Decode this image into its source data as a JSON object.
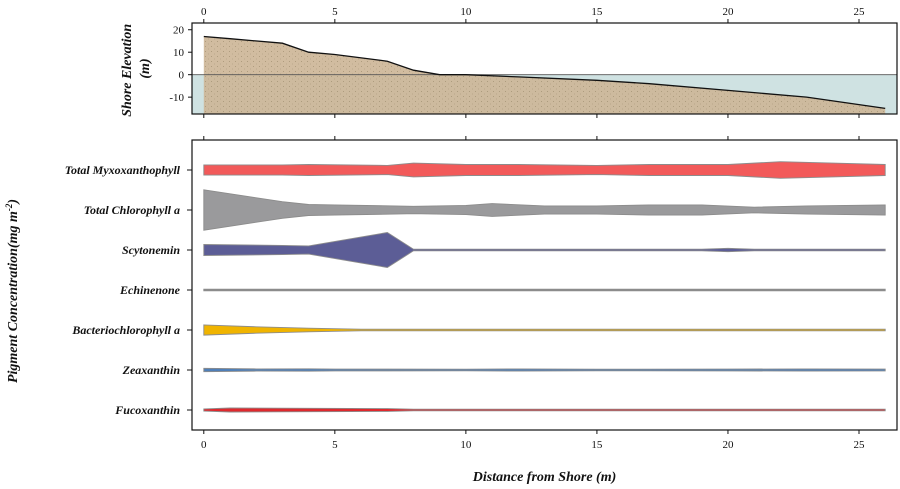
{
  "chart_data": [
    {
      "type": "area",
      "ylabel": "Shore Elevation (m)",
      "xlim": [
        0,
        26
      ],
      "ylim": [
        -15,
        20
      ],
      "x_ticks": [
        "0",
        "5",
        "10",
        "15",
        "20",
        "25"
      ],
      "y_ticks": [
        "20",
        "10",
        "0",
        "-10"
      ],
      "waterline": 0,
      "colors": {
        "land": "#cdb698",
        "water": "#cfe2e2",
        "dots": "#8a7a5a",
        "line": "#111111"
      },
      "profile": {
        "x": [
          0,
          1,
          3,
          4,
          5,
          7,
          8,
          9,
          10,
          12,
          15,
          17,
          20,
          23,
          26
        ],
        "y": [
          17,
          16,
          14,
          10,
          9,
          6,
          2,
          0,
          0,
          -1,
          -2.5,
          -4,
          -7,
          -10,
          -15
        ]
      }
    },
    {
      "type": "area",
      "xlabel": "Distance from Shore (m)",
      "ylabel": "Pigment Concentration(mg m^-2)",
      "ylabel_parts": [
        "Pigment Concentration(mg m",
        "-2",
        ")"
      ],
      "xlim": [
        0,
        26
      ],
      "x_ticks": [
        "0",
        "5",
        "10",
        "15",
        "20",
        "25"
      ],
      "series": [
        {
          "name": "Total Myxoxanthophyll",
          "color": "#f25a5a",
          "x": [
            0,
            3,
            4,
            7,
            8,
            10,
            12,
            15,
            17,
            20,
            22,
            24,
            26
          ],
          "w": [
            0.55,
            0.55,
            0.6,
            0.5,
            0.75,
            0.6,
            0.6,
            0.5,
            0.6,
            0.6,
            0.9,
            0.75,
            0.6
          ]
        },
        {
          "name": "Total Chlorophyll a",
          "color": "#9a9a9c",
          "x": [
            0,
            3,
            4,
            5,
            8,
            10,
            11,
            13,
            15,
            17,
            19,
            21,
            23,
            26
          ],
          "w": [
            2.2,
            0.9,
            0.6,
            0.55,
            0.4,
            0.5,
            0.7,
            0.45,
            0.45,
            0.55,
            0.55,
            0.3,
            0.45,
            0.55
          ]
        },
        {
          "name": "Scytonemin",
          "color": "#5c5d96",
          "x": [
            0,
            3,
            4,
            7,
            8,
            9,
            10,
            15,
            19,
            20,
            21,
            23,
            26
          ],
          "w": [
            0.6,
            0.5,
            0.45,
            1.9,
            0.07,
            0.07,
            0.07,
            0.07,
            0.08,
            0.18,
            0.08,
            0.07,
            0.07
          ]
        },
        {
          "name": "Echinenone",
          "color": "#8c8c8c",
          "x": [
            0,
            26
          ],
          "w": [
            0.04,
            0.04
          ]
        },
        {
          "name": "Bacteriochlorophyll a",
          "color": "#f0b400",
          "x": [
            0,
            2,
            4,
            6,
            7,
            10,
            15,
            20,
            26
          ],
          "w": [
            0.55,
            0.35,
            0.2,
            0.05,
            0.04,
            0.04,
            0.04,
            0.04,
            0.04
          ]
        },
        {
          "name": "Zeaxanthin",
          "color": "#4f7fb8",
          "x": [
            0,
            1,
            2,
            4,
            5,
            10,
            12,
            15,
            20,
            23,
            26
          ],
          "w": [
            0.18,
            0.15,
            0.12,
            0.13,
            0.1,
            0.09,
            0.12,
            0.09,
            0.1,
            0.12,
            0.1
          ]
        },
        {
          "name": "Fucoxanthin",
          "color": "#e0282d",
          "x": [
            0,
            1,
            3,
            7,
            8,
            10,
            15,
            17,
            20,
            26
          ],
          "w": [
            0.12,
            0.22,
            0.2,
            0.15,
            0.05,
            0.09,
            0.07,
            0.08,
            0.09,
            0.09
          ]
        }
      ]
    }
  ]
}
